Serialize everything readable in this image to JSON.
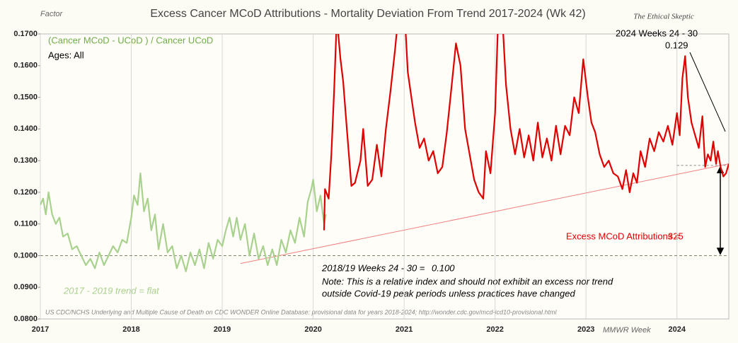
{
  "chart_data": {
    "type": "line",
    "title": "Excess Cancer  MCoD Attributions - Mortality Deviation  From Trend  2017-2024 (Wk 42)",
    "y_axis_label": "Factor",
    "x_axis_label": "MMWR Week",
    "watermark": "The Ethical Skeptic",
    "annotations": {
      "formula": "(Cancer MCoD - UCoD ) / Cancer UCoD",
      "ages": "Ages: All",
      "recent_period": "2024  Weeks 24 - 30",
      "recent_value": "0.129",
      "excess_label": "Excess MCoD Attributions =",
      "excess_value": "325",
      "baseline_period": "2018/19  Weeks 24 - 30  =",
      "baseline_value": "0.100",
      "note_1": "Note: This is a relative index and should not exhibit an excess nor trend",
      "note_2": "outside Covid-19 peak periods unless practices have changed",
      "trend_note": "2017 - 2019 trend = flat",
      "source": "US CDC/NCHS Underlying and Multiple Cause of Death on CDC WONDER Online Database: provisional data for years 2018-2024; http://wonder.cdc.gov/mcd-icd10-provisional.html"
    },
    "xlim": [
      2017,
      2024.57
    ],
    "xticks": [
      2017,
      2018,
      2019,
      2020,
      2021,
      2022,
      2023,
      2024
    ],
    "ylim": [
      0.08,
      0.17
    ],
    "yticks": [
      {
        "value": 0.08,
        "label": "0.0800"
      },
      {
        "value": 0.09,
        "label": "0.0900"
      },
      {
        "value": 0.1,
        "label": "0.1000"
      },
      {
        "value": 0.11,
        "label": "0.1100"
      },
      {
        "value": 0.12,
        "label": "0.1200"
      },
      {
        "value": 0.13,
        "label": "0.1300"
      },
      {
        "value": 0.14,
        "label": "0.1400"
      },
      {
        "value": 0.15,
        "label": "0.1500"
      },
      {
        "value": 0.16,
        "label": "0.1600"
      },
      {
        "value": 0.17,
        "label": "0.1700"
      }
    ],
    "grid": "x",
    "reference_lines": {
      "baseline": 0.1,
      "baseline_color": "#7a8a6a",
      "trend_x": [
        2019.2,
        2024.57
      ],
      "trend_y": [
        0.0975,
        0.129
      ],
      "trend_color": "#f08080",
      "recent_level": 0.1285
    },
    "series": [
      {
        "name": "2017-2020",
        "color": "#a9d18e",
        "x": [
          2017.0,
          2017.03,
          2017.06,
          2017.09,
          2017.13,
          2017.17,
          2017.21,
          2017.25,
          2017.3,
          2017.35,
          2017.4,
          2017.45,
          2017.5,
          2017.55,
          2017.6,
          2017.65,
          2017.7,
          2017.75,
          2017.8,
          2017.85,
          2017.9,
          2017.95,
          2018.0,
          2018.03,
          2018.07,
          2018.1,
          2018.14,
          2018.18,
          2018.22,
          2018.26,
          2018.3,
          2018.35,
          2018.4,
          2018.45,
          2018.5,
          2018.55,
          2018.6,
          2018.65,
          2018.7,
          2018.75,
          2018.8,
          2018.85,
          2018.9,
          2018.95,
          2019.0,
          2019.04,
          2019.08,
          2019.12,
          2019.16,
          2019.2,
          2019.25,
          2019.3,
          2019.35,
          2019.4,
          2019.45,
          2019.5,
          2019.55,
          2019.6,
          2019.65,
          2019.7,
          2019.75,
          2019.8,
          2019.85,
          2019.9,
          2019.94,
          2019.98,
          2020.0,
          2020.04,
          2020.08,
          2020.12,
          2020.14
        ],
        "values": [
          0.116,
          0.118,
          0.113,
          0.12,
          0.113,
          0.11,
          0.112,
          0.106,
          0.107,
          0.102,
          0.103,
          0.1,
          0.097,
          0.099,
          0.096,
          0.101,
          0.097,
          0.1,
          0.103,
          0.101,
          0.105,
          0.104,
          0.112,
          0.119,
          0.116,
          0.126,
          0.114,
          0.118,
          0.108,
          0.113,
          0.102,
          0.11,
          0.101,
          0.103,
          0.096,
          0.1,
          0.095,
          0.101,
          0.097,
          0.102,
          0.096,
          0.104,
          0.099,
          0.105,
          0.103,
          0.108,
          0.112,
          0.106,
          0.112,
          0.105,
          0.11,
          0.1,
          0.107,
          0.099,
          0.103,
          0.097,
          0.102,
          0.097,
          0.105,
          0.101,
          0.108,
          0.104,
          0.112,
          0.106,
          0.117,
          0.121,
          0.124,
          0.114,
          0.119,
          0.11,
          0.113
        ]
      },
      {
        "name": "2020-2024",
        "color": "#e00000",
        "x": [
          2020.12,
          2020.13,
          2020.17,
          2020.2,
          2020.23,
          2020.26,
          2020.3,
          2020.33,
          2020.37,
          2020.42,
          2020.46,
          2020.52,
          2020.55,
          2020.6,
          2020.65,
          2020.7,
          2020.75,
          2020.8,
          2020.85,
          2020.9,
          2020.95,
          2021.0,
          2021.04,
          2021.08,
          2021.12,
          2021.17,
          2021.22,
          2021.27,
          2021.32,
          2021.37,
          2021.42,
          2021.47,
          2021.52,
          2021.57,
          2021.62,
          2021.67,
          2021.72,
          2021.77,
          2021.82,
          2021.87,
          2021.9,
          2021.95,
          2022.0,
          2022.04,
          2022.08,
          2022.12,
          2022.17,
          2022.22,
          2022.27,
          2022.32,
          2022.37,
          2022.42,
          2022.47,
          2022.52,
          2022.57,
          2022.62,
          2022.67,
          2022.72,
          2022.77,
          2022.82,
          2022.87,
          2022.92,
          2022.97,
          2023.02,
          2023.06,
          2023.1,
          2023.15,
          2023.2,
          2023.25,
          2023.3,
          2023.35,
          2023.4,
          2023.44,
          2023.48,
          2023.52,
          2023.56,
          2023.6,
          2023.65,
          2023.7,
          2023.75,
          2023.8,
          2023.85,
          2023.9,
          2023.95,
          2024.0,
          2024.03,
          2024.06,
          2024.09,
          2024.12,
          2024.16,
          2024.2,
          2024.24,
          2024.28,
          2024.31,
          2024.34,
          2024.37,
          2024.4,
          2024.43,
          2024.45,
          2024.48,
          2024.51,
          2024.54,
          2024.57
        ],
        "values": [
          0.108,
          0.121,
          0.118,
          0.132,
          0.152,
          0.175,
          0.162,
          0.155,
          0.14,
          0.122,
          0.123,
          0.13,
          0.14,
          0.122,
          0.124,
          0.135,
          0.125,
          0.14,
          0.152,
          0.165,
          0.18,
          0.18,
          0.158,
          0.15,
          0.142,
          0.134,
          0.137,
          0.13,
          0.133,
          0.126,
          0.128,
          0.139,
          0.153,
          0.167,
          0.16,
          0.14,
          0.132,
          0.124,
          0.12,
          0.118,
          0.133,
          0.126,
          0.145,
          0.18,
          0.175,
          0.154,
          0.14,
          0.132,
          0.14,
          0.131,
          0.138,
          0.13,
          0.142,
          0.131,
          0.137,
          0.13,
          0.141,
          0.132,
          0.141,
          0.138,
          0.15,
          0.145,
          0.162,
          0.15,
          0.142,
          0.139,
          0.132,
          0.128,
          0.13,
          0.126,
          0.125,
          0.121,
          0.127,
          0.12,
          0.126,
          0.123,
          0.133,
          0.128,
          0.137,
          0.133,
          0.139,
          0.136,
          0.141,
          0.135,
          0.145,
          0.138,
          0.156,
          0.163,
          0.15,
          0.142,
          0.138,
          0.134,
          0.144,
          0.128,
          0.132,
          0.13,
          0.136,
          0.129,
          0.133,
          0.128,
          0.125,
          0.126,
          0.129
        ]
      }
    ]
  }
}
